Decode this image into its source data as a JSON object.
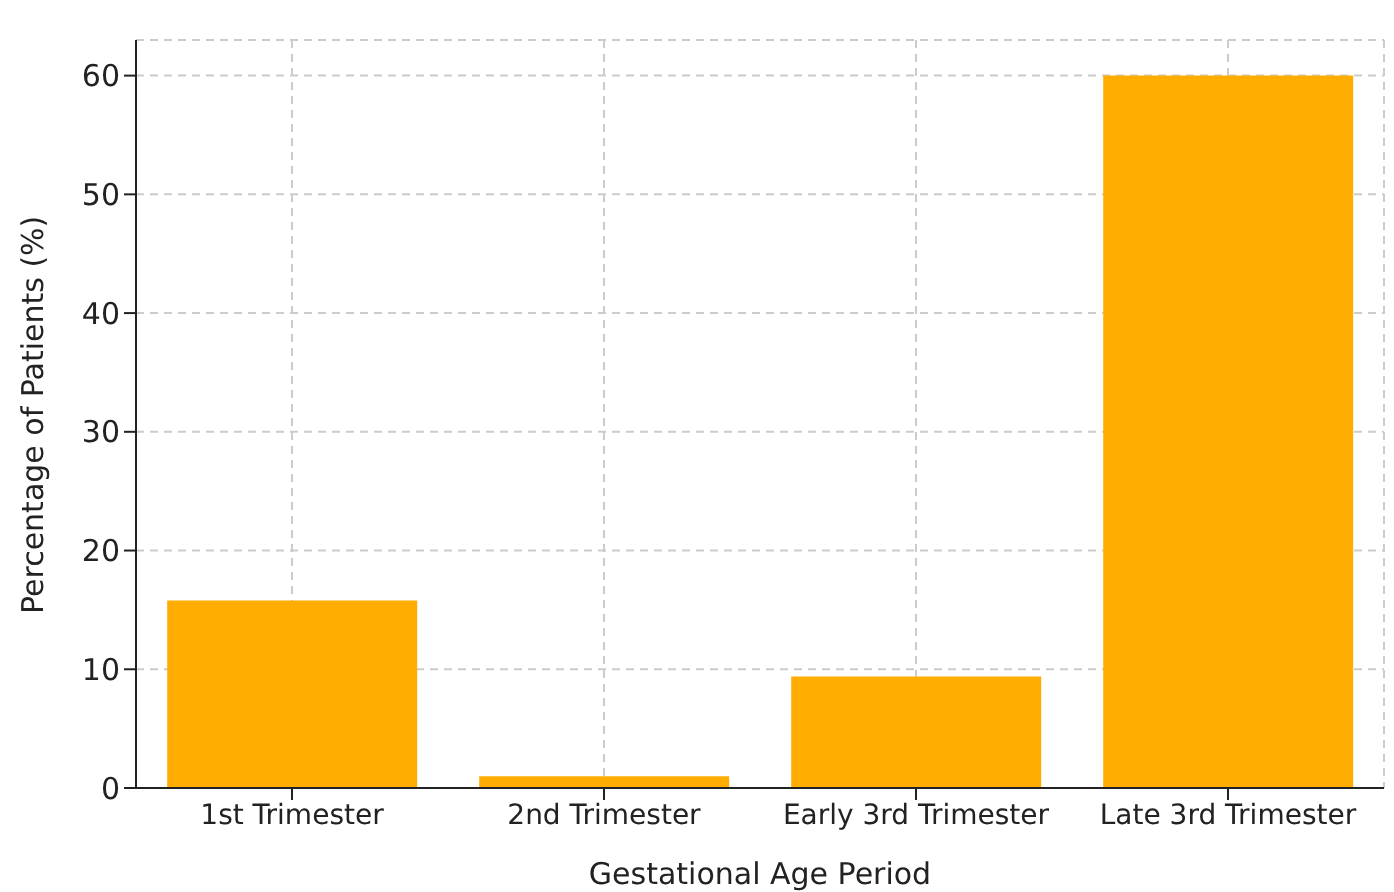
{
  "chart_data": {
    "type": "bar",
    "xlabel": "Gestational Age Period",
    "ylabel": "Percentage of Patients (%)",
    "categories": [
      "1st Trimester",
      "2nd Trimester",
      "Early 3rd Trimester",
      "Late 3rd Trimester"
    ],
    "values": [
      15.8,
      1.0,
      9.4,
      60
    ],
    "color": "#ffad00",
    "ylim": [
      0,
      63
    ],
    "yticks": [
      0,
      10,
      20,
      30,
      40,
      50,
      60
    ],
    "grid": true
  }
}
